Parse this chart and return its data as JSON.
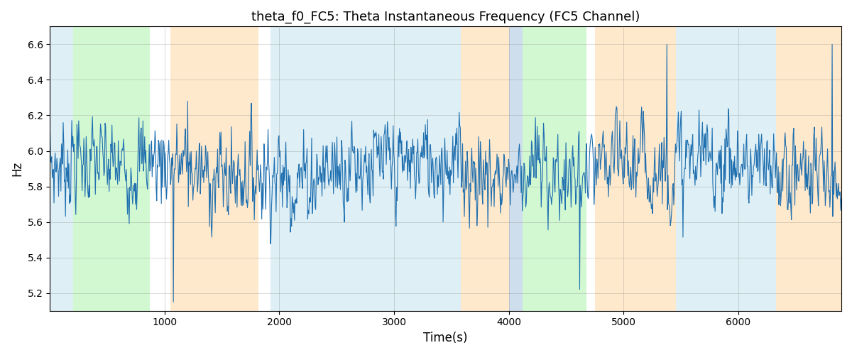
{
  "title": "theta_f0_FC5: Theta Instantaneous Frequency (FC5 Channel)",
  "xlabel": "Time(s)",
  "ylabel": "Hz",
  "ylim": [
    5.1,
    6.7
  ],
  "xlim": [
    0,
    6900
  ],
  "figsize": [
    12.0,
    5.0
  ],
  "dpi": 100,
  "line_color": "#2070b0",
  "line_width": 0.8,
  "background_bands": [
    {
      "xmin": 0,
      "xmax": 200,
      "color": "#add8e6",
      "alpha": 0.4
    },
    {
      "xmin": 200,
      "xmax": 870,
      "color": "#90ee90",
      "alpha": 0.4
    },
    {
      "xmin": 1050,
      "xmax": 1820,
      "color": "#ffd59b",
      "alpha": 0.5
    },
    {
      "xmin": 1920,
      "xmax": 3580,
      "color": "#add8e6",
      "alpha": 0.4
    },
    {
      "xmin": 3580,
      "xmax": 4000,
      "color": "#ffd59b",
      "alpha": 0.5
    },
    {
      "xmin": 4000,
      "xmax": 4120,
      "color": "#b0c8e0",
      "alpha": 0.6
    },
    {
      "xmin": 4120,
      "xmax": 4680,
      "color": "#90ee90",
      "alpha": 0.4
    },
    {
      "xmin": 4750,
      "xmax": 5460,
      "color": "#ffd59b",
      "alpha": 0.5
    },
    {
      "xmin": 5460,
      "xmax": 6330,
      "color": "#add8e6",
      "alpha": 0.4
    },
    {
      "xmin": 6330,
      "xmax": 6900,
      "color": "#ffd59b",
      "alpha": 0.5
    }
  ],
  "seed": 7,
  "num_points": 1380,
  "base_freq": 5.9,
  "noise_std": 0.13,
  "slow_amp1": 0.04,
  "slow_period1": 2500,
  "slow_amp2": 0.03,
  "slow_period2": 800
}
